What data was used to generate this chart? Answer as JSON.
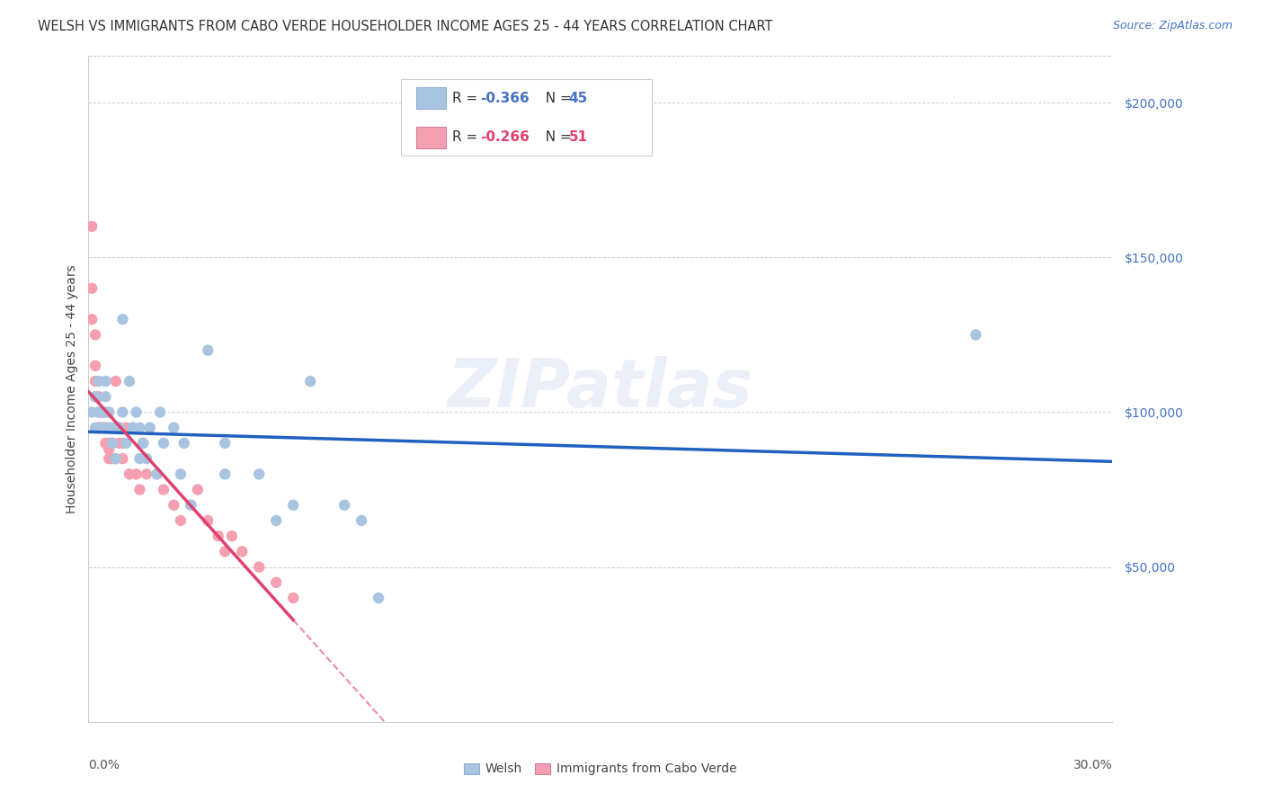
{
  "title": "WELSH VS IMMIGRANTS FROM CABO VERDE HOUSEHOLDER INCOME AGES 25 - 44 YEARS CORRELATION CHART",
  "source": "Source: ZipAtlas.com",
  "ylabel": "Householder Income Ages 25 - 44 years",
  "y_tick_values": [
    50000,
    100000,
    150000,
    200000
  ],
  "y_tick_labels": [
    "$50,000",
    "$100,000",
    "$150,000",
    "$200,000"
  ],
  "xlim": [
    0.0,
    0.3
  ],
  "ylim": [
    0,
    215000
  ],
  "welsh_color": "#a8c4e0",
  "cabo_verde_color": "#f4a0b0",
  "welsh_line_color": "#2060c0",
  "cabo_verde_line_color": "#e04070",
  "watermark": "ZIPatlas",
  "legend_R_welsh": "-0.366",
  "legend_N_welsh": "45",
  "legend_R_cabo": "-0.266",
  "legend_N_cabo": "51",
  "welsh_x": [
    0.001,
    0.002,
    0.002,
    0.003,
    0.003,
    0.004,
    0.004,
    0.005,
    0.005,
    0.005,
    0.006,
    0.006,
    0.007,
    0.007,
    0.008,
    0.009,
    0.01,
    0.01,
    0.011,
    0.012,
    0.013,
    0.014,
    0.015,
    0.015,
    0.016,
    0.017,
    0.018,
    0.02,
    0.021,
    0.022,
    0.025,
    0.027,
    0.028,
    0.03,
    0.035,
    0.04,
    0.04,
    0.05,
    0.055,
    0.06,
    0.065,
    0.075,
    0.08,
    0.085,
    0.26
  ],
  "welsh_y": [
    100000,
    95000,
    105000,
    100000,
    110000,
    95000,
    100000,
    100000,
    105000,
    110000,
    95000,
    100000,
    90000,
    95000,
    85000,
    95000,
    130000,
    100000,
    90000,
    110000,
    95000,
    100000,
    85000,
    95000,
    90000,
    85000,
    95000,
    80000,
    100000,
    90000,
    95000,
    80000,
    90000,
    70000,
    120000,
    80000,
    90000,
    80000,
    65000,
    70000,
    110000,
    70000,
    65000,
    40000,
    125000
  ],
  "cabo_x": [
    0.001,
    0.001,
    0.001,
    0.002,
    0.002,
    0.002,
    0.002,
    0.003,
    0.003,
    0.003,
    0.003,
    0.004,
    0.004,
    0.004,
    0.005,
    0.005,
    0.005,
    0.006,
    0.006,
    0.006,
    0.006,
    0.007,
    0.007,
    0.008,
    0.008,
    0.008,
    0.009,
    0.009,
    0.01,
    0.01,
    0.011,
    0.012,
    0.013,
    0.014,
    0.015,
    0.016,
    0.017,
    0.02,
    0.022,
    0.025,
    0.027,
    0.03,
    0.032,
    0.035,
    0.038,
    0.04,
    0.042,
    0.045,
    0.05,
    0.055,
    0.06
  ],
  "cabo_y": [
    160000,
    140000,
    130000,
    125000,
    115000,
    110000,
    105000,
    105000,
    100000,
    95000,
    95000,
    100000,
    100000,
    95000,
    90000,
    95000,
    95000,
    90000,
    90000,
    88000,
    85000,
    85000,
    90000,
    110000,
    95000,
    85000,
    95000,
    90000,
    90000,
    85000,
    95000,
    80000,
    95000,
    80000,
    75000,
    90000,
    80000,
    80000,
    75000,
    70000,
    65000,
    70000,
    75000,
    65000,
    60000,
    55000,
    60000,
    55000,
    50000,
    45000,
    40000
  ],
  "grid_color": "#cccccc",
  "background_color": "#ffffff",
  "title_fontsize": 10.5,
  "axis_label_fontsize": 10,
  "tick_label_fontsize": 10
}
